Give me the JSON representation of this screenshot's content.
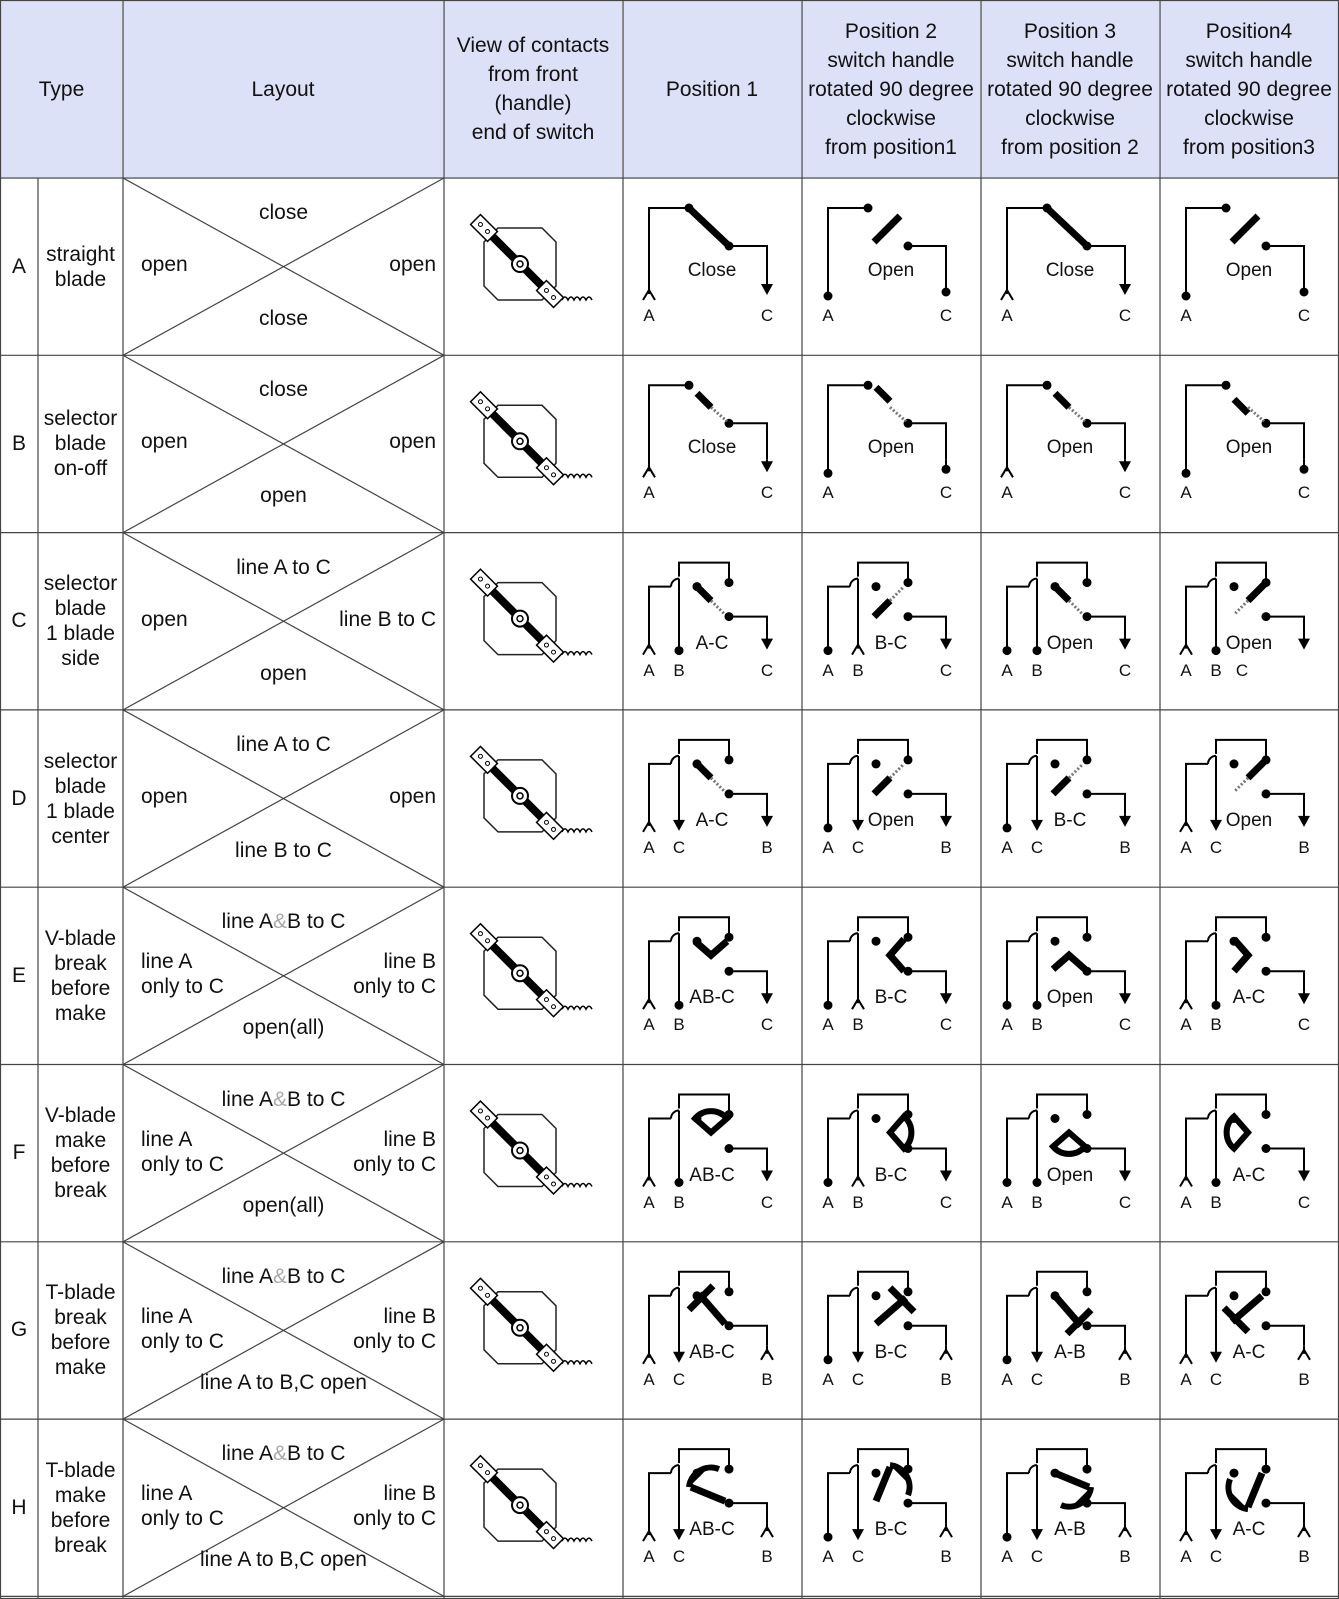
{
  "headers": {
    "type": "Type",
    "layout": "Layout",
    "view": "View of contacts\nfrom front\n(handle)\nend of switch",
    "pos1": "Position 1",
    "pos2": "Position 2\nswitch handle\nrotated 90 degree\nclockwise\nfrom position1",
    "pos3": "Position 3\nswitch handle\nrotated 90 degree\nclockwise\nfrom position 2",
    "pos4": "Position4\nswitch handle\nrotated 90 degree\nclockwise\nfrom position3"
  },
  "rows": [
    {
      "letter": "A",
      "name": "straight\nblade",
      "layout": {
        "top": "close",
        "left": "open",
        "right": "open",
        "bottom": "close"
      },
      "positions": [
        {
          "label": "Close",
          "terms": [
            "A",
            "C"
          ]
        },
        {
          "label": "Open",
          "terms": [
            "A",
            "C"
          ]
        },
        {
          "label": "Close",
          "terms": [
            "A",
            "C"
          ]
        },
        {
          "label": "Open",
          "terms": [
            "A",
            "C"
          ]
        }
      ]
    },
    {
      "letter": "B",
      "name": "selector\nblade\non-off",
      "layout": {
        "top": "close",
        "left": "open",
        "right": "open",
        "bottom": "open"
      },
      "positions": [
        {
          "label": "Close",
          "terms": [
            "A",
            "C"
          ]
        },
        {
          "label": "Open",
          "terms": [
            "A",
            "C"
          ]
        },
        {
          "label": "Open",
          "terms": [
            "A",
            "C"
          ]
        },
        {
          "label": "Open",
          "terms": [
            "A",
            "C"
          ]
        }
      ]
    },
    {
      "letter": "C",
      "name": "selector\nblade\n1 blade\nside",
      "layout": {
        "top": "line A to C",
        "left": "open",
        "right": "line B to C",
        "bottom": "open"
      },
      "positions": [
        {
          "label": "A-C",
          "terms": [
            "A",
            "B",
            "C"
          ]
        },
        {
          "label": "B-C",
          "terms": [
            "A",
            "B",
            "C"
          ]
        },
        {
          "label": "Open",
          "terms": [
            "A",
            "B",
            "C"
          ]
        },
        {
          "label": "Open",
          "terms": [
            "A",
            "B",
            "C"
          ]
        }
      ]
    },
    {
      "letter": "D",
      "name": "selector\nblade\n1 blade\ncenter",
      "layout": {
        "top": "line A to C",
        "left": "open",
        "right": "open",
        "bottom": "line B to C"
      },
      "positions": [
        {
          "label": "A-C",
          "terms": [
            "A",
            "C",
            "B"
          ]
        },
        {
          "label": "Open",
          "terms": [
            "A",
            "C",
            "B"
          ]
        },
        {
          "label": "B-C",
          "terms": [
            "A",
            "C",
            "B"
          ]
        },
        {
          "label": "Open",
          "terms": [
            "A",
            "C",
            "B"
          ]
        }
      ]
    },
    {
      "letter": "E",
      "name": "V-blade\nbreak\nbefore\nmake",
      "layout": {
        "top_pre": "line A",
        "top_amp": "&",
        "top_post": "B to C",
        "left": "line A\nonly to C",
        "right": "line B\nonly to C",
        "bottom": "open(all)"
      },
      "positions": [
        {
          "label": "AB-C",
          "terms": [
            "A",
            "B",
            "C"
          ]
        },
        {
          "label": "B-C",
          "terms": [
            "A",
            "B",
            "C"
          ]
        },
        {
          "label": "Open",
          "terms": [
            "A",
            "B",
            "C"
          ]
        },
        {
          "label": "A-C",
          "terms": [
            "A",
            "B",
            "C"
          ]
        }
      ]
    },
    {
      "letter": "F",
      "name": "V-blade\nmake\nbefore\nbreak",
      "layout": {
        "top_pre": "line A",
        "top_amp": "&",
        "top_post": "B to C",
        "left": "line A\nonly to C",
        "right": "line B\nonly to C",
        "bottom": "open(all)"
      },
      "positions": [
        {
          "label": "AB-C",
          "terms": [
            "A",
            "B",
            "C"
          ]
        },
        {
          "label": "B-C",
          "terms": [
            "A",
            "B",
            "C"
          ]
        },
        {
          "label": "Open",
          "terms": [
            "A",
            "B",
            "C"
          ]
        },
        {
          "label": "A-C",
          "terms": [
            "A",
            "B",
            "C"
          ]
        }
      ]
    },
    {
      "letter": "G",
      "name": "T-blade\nbreak\nbefore\nmake",
      "layout": {
        "top_pre": "line A",
        "top_amp": "&",
        "top_post": "B to C",
        "left": "line A\nonly to C",
        "right": "line B\nonly to C",
        "bottom": "line A to B,C open"
      },
      "positions": [
        {
          "label": "AB-C",
          "terms": [
            "A",
            "C",
            "B"
          ]
        },
        {
          "label": "B-C",
          "terms": [
            "A",
            "C",
            "B"
          ]
        },
        {
          "label": "A-B",
          "terms": [
            "A",
            "C",
            "B"
          ]
        },
        {
          "label": "A-C",
          "terms": [
            "A",
            "C",
            "B"
          ]
        }
      ]
    },
    {
      "letter": "H",
      "name": "T-blade\nmake\nbefore\nbreak",
      "layout": {
        "top_pre": "line A",
        "top_amp": "&",
        "top_post": "B to C",
        "left": "line A\nonly to C",
        "right": "line B\nonly to C",
        "bottom": "line A to B,C open"
      },
      "positions": [
        {
          "label": "AB-C",
          "terms": [
            "A",
            "C",
            "B"
          ]
        },
        {
          "label": "B-C",
          "terms": [
            "A",
            "C",
            "B"
          ]
        },
        {
          "label": "A-B",
          "terms": [
            "A",
            "C",
            "B"
          ]
        },
        {
          "label": "A-C",
          "terms": [
            "A",
            "C",
            "B"
          ]
        }
      ]
    }
  ]
}
